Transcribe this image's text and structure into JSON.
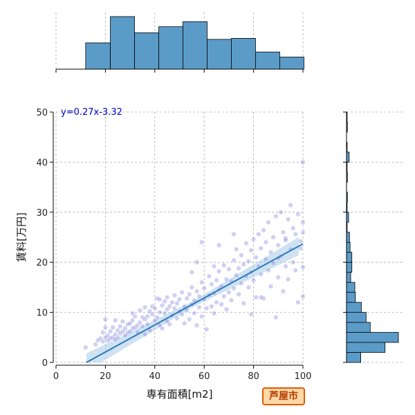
{
  "chart_data": {
    "type": "scatter",
    "xlabel": "専有面積[m2]",
    "ylabel": "賃料[万円]",
    "xlim": [
      0,
      100
    ],
    "ylim": [
      0,
      50
    ],
    "xticks": [
      0,
      20,
      40,
      60,
      80,
      100
    ],
    "yticks": [
      0,
      10,
      20,
      30,
      40,
      50
    ],
    "grid": true,
    "regression": {
      "slope": 0.27,
      "intercept": -3.32,
      "label": "y=0.27x-3.32"
    },
    "points": [
      [
        12,
        3
      ],
      [
        16,
        3.6
      ],
      [
        17,
        4.4
      ],
      [
        18,
        4.8
      ],
      [
        19,
        4.2
      ],
      [
        19,
        6
      ],
      [
        20,
        5
      ],
      [
        20,
        7
      ],
      [
        20,
        8.6
      ],
      [
        21,
        4.4
      ],
      [
        21,
        5.4
      ],
      [
        22,
        4.8
      ],
      [
        22,
        6.2
      ],
      [
        23,
        5
      ],
      [
        23,
        7
      ],
      [
        24,
        5.6
      ],
      [
        24,
        4.6
      ],
      [
        25,
        6.4
      ],
      [
        25,
        5
      ],
      [
        26,
        7.2
      ],
      [
        26,
        5.8
      ],
      [
        27,
        6.2
      ],
      [
        27,
        8.2
      ],
      [
        28,
        6.8
      ],
      [
        28,
        5.4
      ],
      [
        29,
        7.6
      ],
      [
        29,
        6
      ],
      [
        30,
        7.8
      ],
      [
        30,
        6.2
      ],
      [
        31,
        8.4
      ],
      [
        31,
        6.8
      ],
      [
        32,
        7
      ],
      [
        32,
        9.2
      ],
      [
        33,
        7.4
      ],
      [
        33,
        6
      ],
      [
        34,
        8
      ],
      [
        34,
        10.4
      ],
      [
        35,
        7.2
      ],
      [
        35,
        9
      ],
      [
        36,
        8.6
      ],
      [
        36,
        5.6
      ],
      [
        37,
        9.2
      ],
      [
        37,
        7.6
      ],
      [
        38,
        10.2
      ],
      [
        38,
        6.4
      ],
      [
        39,
        9.6
      ],
      [
        39,
        11.2
      ],
      [
        40,
        8.4
      ],
      [
        40,
        10.8
      ],
      [
        41,
        9
      ],
      [
        41,
        12.8
      ],
      [
        42,
        7.4
      ],
      [
        42,
        10
      ],
      [
        43,
        11.4
      ],
      [
        43,
        6.8
      ],
      [
        44,
        9.8
      ],
      [
        44,
        12.2
      ],
      [
        45,
        8.2
      ],
      [
        45,
        10.6
      ],
      [
        46,
        11.2
      ],
      [
        46,
        7.6
      ],
      [
        47,
        12
      ],
      [
        47,
        9.4
      ],
      [
        48,
        10.8
      ],
      [
        48,
        13.4
      ],
      [
        49,
        8.8
      ],
      [
        49,
        11.8
      ],
      [
        50,
        10.2
      ],
      [
        50,
        12.6
      ],
      [
        51,
        9.6
      ],
      [
        51,
        14
      ],
      [
        52,
        11.2
      ],
      [
        52,
        7.8
      ],
      [
        53,
        12.8
      ],
      [
        53,
        10.4
      ],
      [
        54,
        13.6
      ],
      [
        54,
        8.6
      ],
      [
        55,
        11.6
      ],
      [
        55,
        15
      ],
      [
        56,
        9.8
      ],
      [
        56,
        12.4
      ],
      [
        57,
        14.2
      ],
      [
        57,
        7.4
      ],
      [
        58,
        11
      ],
      [
        58,
        13.2
      ],
      [
        59,
        16
      ],
      [
        59,
        9.2
      ],
      [
        60,
        12.6
      ],
      [
        60,
        14.8
      ],
      [
        61,
        10.8
      ],
      [
        61,
        6.6
      ],
      [
        62,
        13.4
      ],
      [
        62,
        17.2
      ],
      [
        63,
        11.2
      ],
      [
        63,
        15.6
      ],
      [
        64,
        9.8
      ],
      [
        64,
        13.8
      ],
      [
        65,
        16.4
      ],
      [
        65,
        12
      ],
      [
        66,
        14.6
      ],
      [
        66,
        18.2
      ],
      [
        67,
        11.6
      ],
      [
        67,
        15.2
      ],
      [
        68,
        13.2
      ],
      [
        68,
        19.4
      ],
      [
        69,
        16.6
      ],
      [
        69,
        10.6
      ],
      [
        70,
        14
      ],
      [
        70,
        18.6
      ],
      [
        71,
        16.2
      ],
      [
        71,
        12.4
      ],
      [
        72,
        20.4
      ],
      [
        72,
        14.8
      ],
      [
        73,
        17.4
      ],
      [
        73,
        22.6
      ],
      [
        74,
        13.6
      ],
      [
        74,
        18.8
      ],
      [
        75,
        21.4
      ],
      [
        75,
        15.8
      ],
      [
        76,
        19.6
      ],
      [
        76,
        11.8
      ],
      [
        77,
        17.2
      ],
      [
        77,
        23.8
      ],
      [
        78,
        20.2
      ],
      [
        78,
        15
      ],
      [
        79,
        22.4
      ],
      [
        79,
        18
      ],
      [
        80,
        24.6
      ],
      [
        80,
        16.4
      ],
      [
        81,
        21
      ],
      [
        81,
        13
      ],
      [
        82,
        19.2
      ],
      [
        82,
        25.6
      ],
      [
        83,
        22.8
      ],
      [
        83,
        17.6
      ],
      [
        84,
        26.4
      ],
      [
        84,
        12.8
      ],
      [
        85,
        20.6
      ],
      [
        85,
        24
      ],
      [
        86,
        18.4
      ],
      [
        86,
        28
      ],
      [
        87,
        22
      ],
      [
        87,
        15.2
      ],
      [
        88,
        25
      ],
      [
        88,
        19.8
      ],
      [
        89,
        29.2
      ],
      [
        89,
        9
      ],
      [
        90,
        23.4
      ],
      [
        90,
        17
      ],
      [
        91,
        30
      ],
      [
        91,
        21.2
      ],
      [
        92,
        26
      ],
      [
        92,
        14.2
      ],
      [
        93,
        24.8
      ],
      [
        93,
        19.2
      ],
      [
        94,
        28.6
      ],
      [
        94,
        16.6
      ],
      [
        95,
        22.6
      ],
      [
        95,
        31.4
      ],
      [
        96,
        26.8
      ],
      [
        96,
        20
      ],
      [
        97,
        18.4
      ],
      [
        97,
        25.6
      ],
      [
        98,
        29.6
      ],
      [
        98,
        12
      ],
      [
        99,
        24.2
      ],
      [
        99,
        22.8
      ],
      [
        100,
        40
      ],
      [
        100,
        26
      ],
      [
        100,
        28
      ],
      [
        100,
        19
      ],
      [
        100,
        13.2
      ],
      [
        59,
        24
      ],
      [
        57,
        20
      ],
      [
        66,
        23.4
      ],
      [
        72,
        25.6
      ],
      [
        64,
        19.2
      ],
      [
        55,
        18
      ],
      [
        45,
        13
      ],
      [
        42,
        12.6
      ],
      [
        24,
        8.4
      ],
      [
        31,
        9.8
      ],
      [
        36,
        11
      ],
      [
        79,
        9.6
      ],
      [
        83,
        13
      ],
      [
        90,
        20.8
      ],
      [
        93,
        24.4
      ]
    ]
  },
  "top_histogram": {
    "bin_edges": [
      12,
      22,
      31.8,
      41.6,
      51.4,
      61.2,
      71,
      80.8,
      90.6,
      100.4
    ],
    "counts": [
      52,
      104,
      72,
      84,
      94,
      59,
      61,
      34,
      24
    ]
  },
  "right_histogram": {
    "bin_edges": [
      0,
      2,
      4,
      6,
      8,
      10,
      12,
      14,
      16,
      18,
      20,
      22,
      24,
      26,
      28,
      30,
      32,
      34,
      36,
      38,
      40,
      42,
      44,
      46,
      48,
      50
    ],
    "counts": [
      48,
      130,
      175,
      80,
      66,
      50,
      30,
      28,
      14,
      18,
      18,
      12,
      10,
      2,
      7,
      2,
      3,
      0,
      3,
      2,
      9,
      2,
      0,
      3,
      2
    ]
  },
  "colors": {
    "point": "#7777dd",
    "regression_line": "#2a7ab8",
    "confidence_band": "#a8cbe8",
    "histogram_fill": "#5b9bc8",
    "grid": "#aaaaaa",
    "equation_text": "#0000cc"
  },
  "badge": {
    "text": "芦屋市"
  }
}
